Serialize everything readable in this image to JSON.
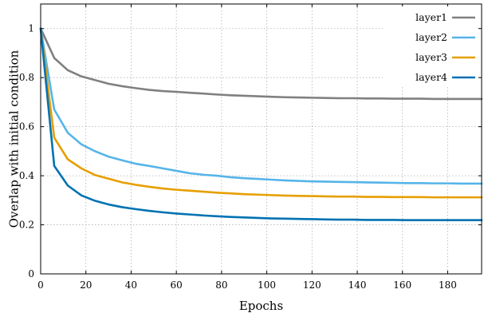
{
  "chart_data": {
    "type": "line",
    "title": "",
    "xlabel": "Epochs",
    "ylabel": "Overlap with initial condition",
    "xlim": [
      0,
      195
    ],
    "ylim": [
      0,
      1.1
    ],
    "xticks": [
      0,
      20,
      40,
      60,
      80,
      100,
      120,
      140,
      160,
      180
    ],
    "yticks": [
      0,
      0.2,
      0.4,
      0.6,
      0.8,
      1
    ],
    "ytick_labels": [
      "0",
      "0.2",
      "0.4",
      "0.6",
      "0.8",
      "1"
    ],
    "grid": true,
    "legend_position": "top-right",
    "x": [
      0,
      6,
      12,
      18,
      24,
      30,
      36,
      42,
      48,
      54,
      60,
      66,
      72,
      78,
      84,
      90,
      96,
      102,
      108,
      114,
      120,
      126,
      132,
      138,
      144,
      150,
      156,
      162,
      168,
      174,
      180,
      186,
      192,
      195
    ],
    "series": [
      {
        "name": "layer1",
        "color": "#808080",
        "values": [
          1.0,
          0.88,
          0.83,
          0.805,
          0.79,
          0.775,
          0.765,
          0.757,
          0.75,
          0.745,
          0.742,
          0.738,
          0.735,
          0.731,
          0.728,
          0.726,
          0.724,
          0.722,
          0.72,
          0.719,
          0.718,
          0.717,
          0.716,
          0.716,
          0.715,
          0.715,
          0.714,
          0.714,
          0.714,
          0.713,
          0.713,
          0.713,
          0.713,
          0.713
        ]
      },
      {
        "name": "layer2",
        "color": "#56b4e9",
        "values": [
          1.0,
          0.67,
          0.575,
          0.528,
          0.5,
          0.478,
          0.463,
          0.449,
          0.44,
          0.43,
          0.42,
          0.41,
          0.404,
          0.4,
          0.394,
          0.39,
          0.387,
          0.384,
          0.381,
          0.379,
          0.377,
          0.376,
          0.375,
          0.374,
          0.373,
          0.372,
          0.371,
          0.37,
          0.37,
          0.369,
          0.369,
          0.368,
          0.368,
          0.368
        ]
      },
      {
        "name": "layer3",
        "color": "#e69f00",
        "values": [
          1.0,
          0.555,
          0.467,
          0.43,
          0.403,
          0.388,
          0.373,
          0.363,
          0.355,
          0.348,
          0.343,
          0.339,
          0.335,
          0.331,
          0.328,
          0.325,
          0.323,
          0.321,
          0.319,
          0.318,
          0.317,
          0.316,
          0.315,
          0.315,
          0.314,
          0.314,
          0.313,
          0.313,
          0.313,
          0.312,
          0.312,
          0.312,
          0.312,
          0.312
        ]
      },
      {
        "name": "layer4",
        "color": "#0072b2",
        "values": [
          1.0,
          0.44,
          0.36,
          0.32,
          0.298,
          0.283,
          0.272,
          0.264,
          0.257,
          0.251,
          0.246,
          0.242,
          0.238,
          0.235,
          0.232,
          0.23,
          0.228,
          0.226,
          0.225,
          0.224,
          0.223,
          0.222,
          0.221,
          0.221,
          0.22,
          0.22,
          0.22,
          0.219,
          0.219,
          0.219,
          0.219,
          0.219,
          0.219,
          0.219
        ]
      }
    ]
  }
}
